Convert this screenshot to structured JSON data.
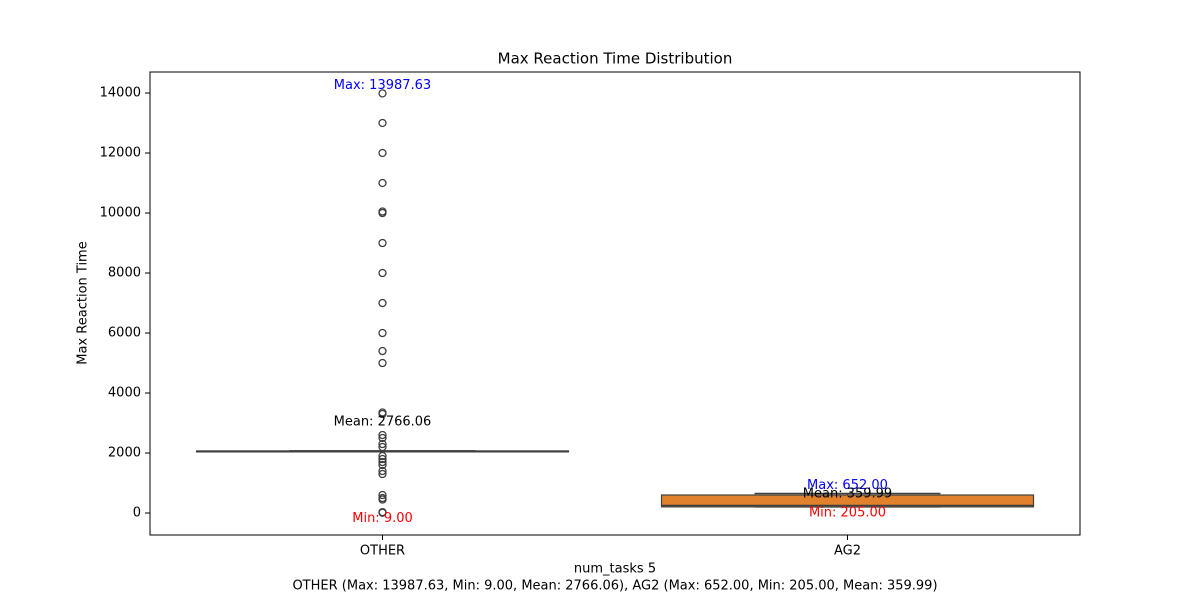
{
  "chart_data": {
    "type": "box",
    "title": "Max Reaction Time Distribution",
    "ylabel": "Max Reaction Time",
    "xlabel": "num_tasks 5",
    "caption": "OTHER (Max: 13987.63, Min: 9.00, Mean: 2766.06), AG2 (Max: 652.00, Min: 205.00, Mean: 359.99)",
    "categories": [
      "OTHER",
      "AG2"
    ],
    "ylim": [
      -733,
      14700
    ],
    "yticks": [
      0,
      2000,
      4000,
      6000,
      8000,
      10000,
      12000,
      14000
    ],
    "boxes": [
      {
        "color": "#1f77b4",
        "whisker_low": 2050,
        "q1": 2050,
        "median": 2060,
        "q3": 2070,
        "whisker_high": 2070,
        "outliers": [
          13987.63,
          13000,
          12000,
          11000,
          10050,
          10000,
          9000,
          8000,
          7000,
          6000,
          5400,
          5000,
          3350,
          3300,
          2600,
          2500,
          2300,
          2200,
          1900,
          1800,
          1700,
          1600,
          1400,
          1300,
          600,
          500,
          450,
          30,
          9
        ],
        "labels": [
          {
            "text": "Max: 13987.63",
            "value": 13987.63,
            "color": "#0000ff"
          },
          {
            "text": "Mean: 2766.06",
            "value": 2766.06,
            "color": "#000000"
          },
          {
            "text": "Min: 9.00",
            "value": 9,
            "color": "#ff0000"
          }
        ]
      },
      {
        "color": "#e1812c",
        "whisker_low": 205,
        "q1": 205,
        "median": 250,
        "q3": 600,
        "whisker_high": 652,
        "outliers": [],
        "labels": [
          {
            "text": "Max: 652.00",
            "value": 652,
            "color": "#0000ff"
          },
          {
            "text": "Mean: 359.99",
            "value": 359.99,
            "color": "#000000"
          },
          {
            "text": "Min: 205.00",
            "value": 205,
            "color": "#ff0000"
          }
        ]
      }
    ]
  }
}
